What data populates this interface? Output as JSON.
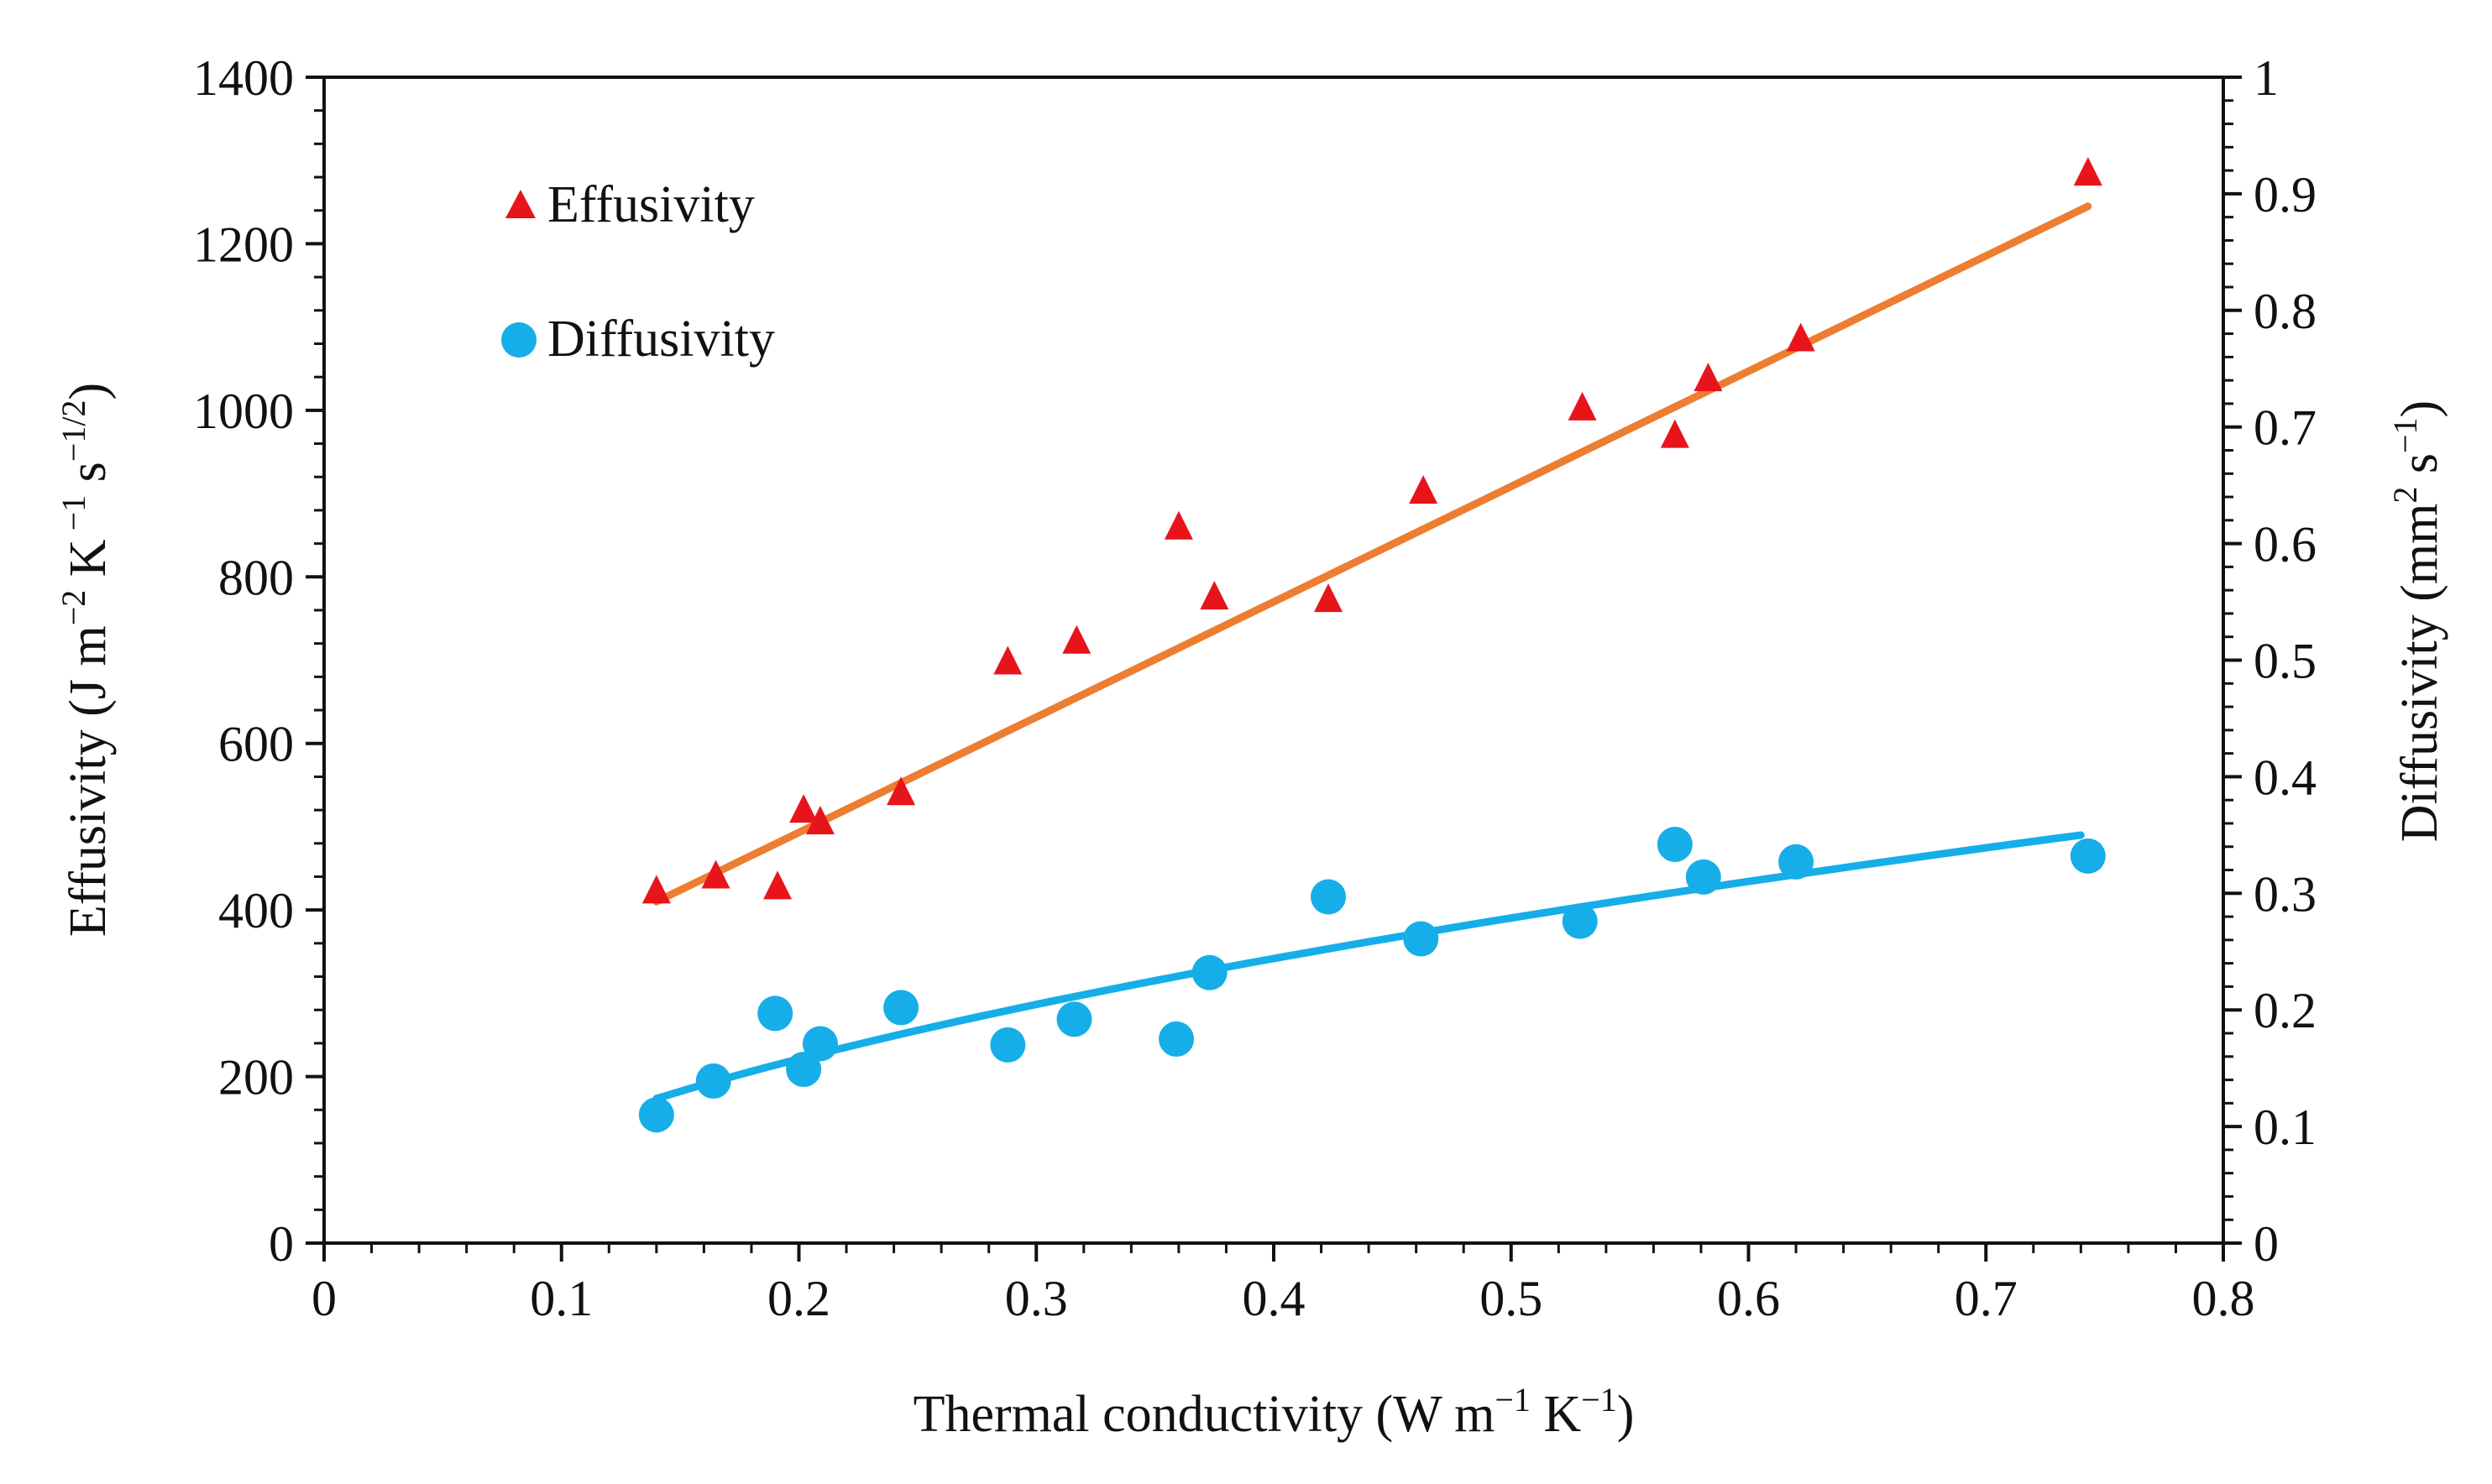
{
  "chart_data": {
    "type": "scatter",
    "x_axis": {
      "label_main": "Thermal conductivity (W m",
      "label_sup1": "−1",
      "label_mid": " K",
      "label_sup2": "−1",
      "label_end": ")",
      "range": [
        0,
        0.8
      ],
      "ticks": [
        "0",
        "0.1",
        "0.2",
        "0.3",
        "0.4",
        "0.5",
        "0.6",
        "0.7",
        "0.8"
      ]
    },
    "y_left_axis": {
      "label_a": "Effusivity (J m",
      "label_sup1": "−2",
      "label_b": " K",
      "label_sup2": " −1",
      "label_c": " s",
      "label_sup3": "−1/2",
      "label_d": ")",
      "range": [
        0,
        1400
      ],
      "ticks": [
        "0",
        "200",
        "400",
        "600",
        "800",
        "1000",
        "1200",
        "1400"
      ]
    },
    "y_right_axis": {
      "label_a": "Diffusivity  (mm",
      "label_sup1": "2",
      "label_b": " s",
      "label_sup2": "−1",
      "label_c": ")",
      "range": [
        0,
        1
      ],
      "ticks": [
        "0",
        "0.1",
        "0.2",
        "0.3",
        "0.4",
        "0.5",
        "0.6",
        "0.7",
        "0.8",
        "0.9",
        "1"
      ]
    },
    "legend": {
      "position": "top-left",
      "entries": [
        "Effusivity",
        "Diffusivity"
      ]
    },
    "series": [
      {
        "name": "Effusivity",
        "axis": "left",
        "marker": "triangle",
        "color": "#e8141c",
        "points": [
          [
            0.14,
            425
          ],
          [
            0.165,
            443
          ],
          [
            0.191,
            430
          ],
          [
            0.202,
            522
          ],
          [
            0.209,
            508
          ],
          [
            0.243,
            543
          ],
          [
            0.288,
            700
          ],
          [
            0.317,
            725
          ],
          [
            0.36,
            862
          ],
          [
            0.375,
            778
          ],
          [
            0.423,
            775
          ],
          [
            0.463,
            905
          ],
          [
            0.53,
            1005
          ],
          [
            0.569,
            972
          ],
          [
            0.583,
            1040
          ],
          [
            0.622,
            1088
          ],
          [
            0.743,
            1287
          ]
        ],
        "fit": {
          "color": "#ed7d31",
          "x_range": [
            0.14,
            0.743
          ],
          "y_range": [
            410,
            1245
          ]
        }
      },
      {
        "name": "Diffusivity",
        "axis": "right",
        "marker": "circle",
        "color": "#16aee8",
        "points": [
          [
            0.14,
            0.11
          ],
          [
            0.164,
            0.139
          ],
          [
            0.19,
            0.197
          ],
          [
            0.202,
            0.149
          ],
          [
            0.209,
            0.171
          ],
          [
            0.243,
            0.202
          ],
          [
            0.288,
            0.17
          ],
          [
            0.316,
            0.192
          ],
          [
            0.359,
            0.175
          ],
          [
            0.373,
            0.232
          ],
          [
            0.423,
            0.297
          ],
          [
            0.462,
            0.261
          ],
          [
            0.529,
            0.276
          ],
          [
            0.569,
            0.342
          ],
          [
            0.581,
            0.314
          ],
          [
            0.62,
            0.327
          ],
          [
            0.743,
            0.332
          ]
        ],
        "fit": {
          "color": "#16aee8",
          "x_range": [
            0.14,
            0.74
          ],
          "y_range": [
            0.124,
            0.35
          ]
        }
      }
    ]
  }
}
